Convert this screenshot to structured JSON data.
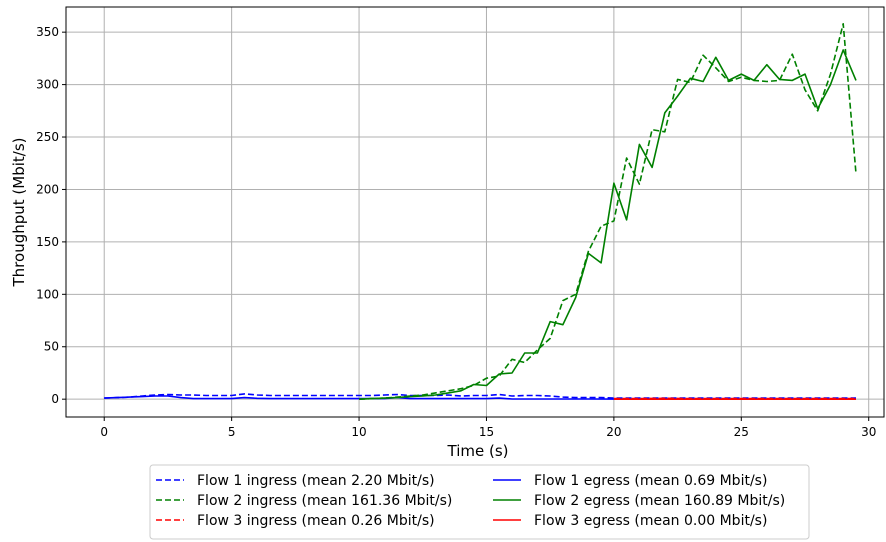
{
  "chart_data": {
    "type": "line",
    "xlabel": "Time (s)",
    "ylabel": "Throughput (Mbit/s)",
    "xlim": [
      -1.5,
      30.6
    ],
    "ylim": [
      -17,
      374
    ],
    "xticks": [
      0,
      5,
      10,
      15,
      20,
      25,
      30
    ],
    "yticks": [
      0,
      50,
      100,
      150,
      200,
      250,
      300,
      350
    ],
    "grid": true,
    "legend_position": "bottom-center",
    "series": [
      {
        "name": "Flow 1 ingress (mean 2.20 Mbit/s)",
        "color": "#0000ff",
        "dash": "dashed",
        "x": [
          0,
          0.5,
          1,
          1.5,
          2,
          2.5,
          3,
          3.5,
          4,
          4.5,
          5,
          5.5,
          6,
          6.5,
          7,
          7.5,
          8,
          8.5,
          9,
          9.5,
          10,
          10.5,
          11,
          11.5,
          12,
          12.5,
          13,
          13.5,
          14,
          14.5,
          15,
          15.5,
          16,
          16.5,
          17,
          17.5,
          18,
          18.5,
          19,
          19.5,
          20,
          21,
          22,
          23,
          24,
          25,
          26,
          27,
          28,
          29,
          29.5
        ],
        "values": [
          1,
          1.5,
          2,
          3,
          4,
          4.5,
          4,
          4,
          3.5,
          3.5,
          3.5,
          5,
          4,
          3.5,
          3.5,
          3.5,
          3.5,
          3.5,
          3.5,
          3.5,
          3.5,
          3.5,
          4,
          4.5,
          3.5,
          3.5,
          3.5,
          4,
          3,
          3.5,
          3.5,
          4.5,
          3,
          3.5,
          3.5,
          3,
          2,
          1.5,
          1.5,
          1.5,
          1,
          1,
          1,
          1,
          1,
          1,
          1,
          1,
          1,
          1,
          1
        ]
      },
      {
        "name": "Flow 2 ingress (mean 161.36 Mbit/s)",
        "color": "#008000",
        "dash": "dashed",
        "x": [
          10,
          10.5,
          11,
          11.5,
          12,
          12.5,
          13,
          13.5,
          14,
          14.5,
          15,
          15.5,
          16,
          16.5,
          17,
          17.5,
          18,
          18.5,
          19,
          19.5,
          20,
          20.5,
          21,
          21.5,
          22,
          22.5,
          23,
          23.5,
          24,
          24.5,
          25,
          25.5,
          26,
          26.5,
          27,
          27.5,
          28,
          28.5,
          29,
          29.5
        ],
        "values": [
          0,
          0.5,
          1,
          2,
          3,
          4,
          6,
          8,
          10,
          13,
          20,
          22,
          38,
          35,
          47,
          58,
          94,
          100,
          141,
          165,
          170,
          230,
          205,
          257,
          255,
          305,
          302,
          328,
          316,
          303,
          307,
          304,
          303,
          304,
          329,
          295,
          275,
          310,
          358,
          215
        ]
      },
      {
        "name": "Flow 3 ingress (mean 0.26 Mbit/s)",
        "color": "#ff0000",
        "dash": "dashed",
        "x": [
          20,
          21,
          22,
          23,
          24,
          25,
          26,
          27,
          28,
          29,
          29.5
        ],
        "values": [
          0.5,
          0.5,
          0.8,
          0.5,
          0.5,
          0.5,
          0.5,
          0.5,
          0.5,
          0.5,
          0.5
        ]
      },
      {
        "name": "Flow 1 egress (mean 0.69 Mbit/s)",
        "color": "#0000ff",
        "dash": "solid",
        "x": [
          0,
          0.5,
          1,
          1.5,
          2,
          2.5,
          3,
          3.5,
          4,
          4.5,
          5,
          5.5,
          6,
          6.5,
          7,
          7.5,
          8,
          8.5,
          9,
          9.5,
          10,
          10.5,
          11,
          11.5,
          12,
          12.5,
          13,
          13.5,
          14,
          14.5,
          15,
          15.5,
          16,
          17,
          18,
          19,
          20,
          21,
          22,
          23,
          24,
          25,
          26,
          27,
          28,
          29,
          29.5
        ],
        "values": [
          1,
          1.5,
          2,
          2.5,
          3,
          3,
          1.5,
          0.5,
          0.5,
          0.5,
          0.5,
          1.5,
          0.8,
          0.5,
          0.5,
          0.5,
          0.5,
          0.5,
          0.5,
          0.5,
          0.5,
          0.5,
          0.5,
          1.5,
          0.5,
          0.5,
          0.5,
          0.5,
          0.5,
          0.5,
          0.5,
          1,
          0.2,
          0.2,
          0.2,
          0.2,
          0.1,
          0.1,
          0.1,
          0.1,
          0.1,
          0.1,
          0.1,
          0.1,
          0.1,
          0.1,
          0.1
        ]
      },
      {
        "name": "Flow 2 egress (mean 160.89 Mbit/s)",
        "color": "#008000",
        "dash": "solid",
        "x": [
          10,
          10.5,
          11,
          11.5,
          12,
          12.5,
          13,
          13.5,
          14,
          14.5,
          15,
          15.5,
          16,
          16.5,
          17,
          17.5,
          18,
          18.5,
          19,
          19.5,
          20,
          20.5,
          21,
          21.5,
          22,
          22.5,
          23,
          23.5,
          24,
          24.5,
          25,
          25.5,
          26,
          26.5,
          27,
          27.5,
          28,
          28.5,
          29,
          29.5
        ],
        "values": [
          0,
          0.5,
          1,
          1.5,
          2.5,
          3,
          4,
          6,
          8,
          14,
          13,
          24,
          25,
          44,
          44,
          74,
          71,
          97,
          139,
          130,
          206,
          171,
          243,
          221,
          273,
          289,
          306,
          303,
          326,
          304,
          310,
          304,
          319,
          305,
          304,
          310,
          277,
          300,
          333,
          304
        ]
      },
      {
        "name": "Flow 3 egress (mean 0.00 Mbit/s)",
        "color": "#ff0000",
        "dash": "solid",
        "x": [
          20,
          21,
          22,
          23,
          24,
          25,
          26,
          27,
          28,
          29,
          29.5
        ],
        "values": [
          0,
          0,
          0,
          0,
          0,
          0,
          0,
          0,
          0,
          0,
          0
        ]
      }
    ]
  }
}
